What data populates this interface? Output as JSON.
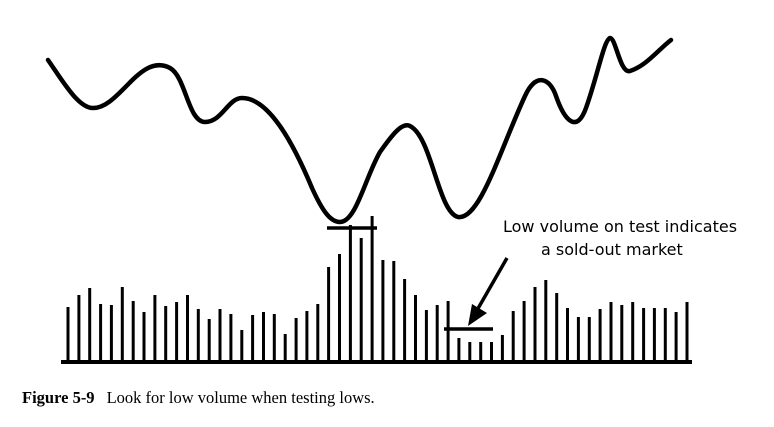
{
  "annotation": {
    "line1": "Low volume on test indicates",
    "line2": "a sold-out market"
  },
  "caption": {
    "label": "Figure 5-9",
    "text": "Look for low volume when testing lows."
  },
  "colors": {
    "ink": "#000000",
    "background": "#ffffff"
  },
  "volume_levels": [
    0.55,
    0.67,
    0.74,
    0.58,
    0.57,
    0.75,
    0.61,
    0.5,
    0.67,
    0.56,
    0.6,
    0.67,
    0.53,
    0.43,
    0.53,
    0.48,
    0.32,
    0.47,
    0.5,
    0.48,
    0.28,
    0.44,
    0.51,
    0.58,
    0.95,
    1.08,
    1.37,
    1.24,
    1.46,
    1.02,
    1.01,
    0.83,
    0.67,
    0.52,
    0.57,
    0.61,
    0.24,
    0.2,
    0.2,
    0.2,
    0.27,
    0.51,
    0.61,
    0.75,
    0.82,
    0.69,
    0.54,
    0.45,
    0.45,
    0.53,
    0.6,
    0.57,
    0.6,
    0.54,
    0.54,
    0.54,
    0.5,
    0.6
  ]
}
